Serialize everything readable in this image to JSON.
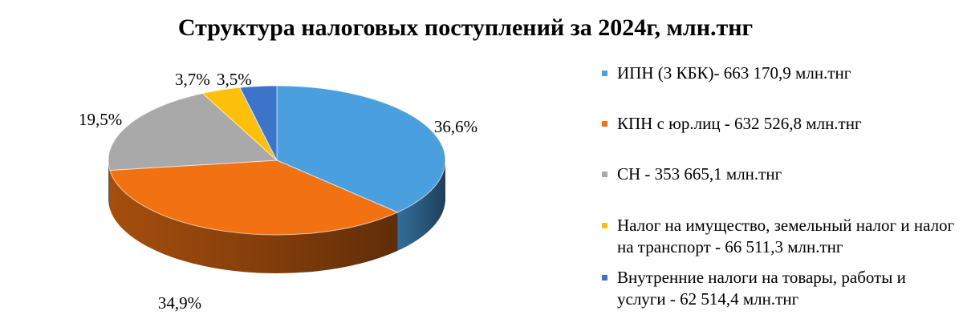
{
  "chart_data": {
    "type": "pie",
    "title": "Структура налоговых поступлений за 2024г, млн.тнг",
    "slices": [
      {
        "label": "ИПН (3 КБК)- 663 170,9 млн.тнг",
        "value": 663170.9,
        "percent_label": "36,6%",
        "color": "#4a9fdf"
      },
      {
        "label": "КПН с юр.лиц - 632 526,8 млн.тнг",
        "value": 632526.8,
        "percent_label": "34,9%",
        "color": "#f27213"
      },
      {
        "label": "СН - 353 665,1 млн.тнг",
        "value": 353665.1,
        "percent_label": "19,5%",
        "color": "#a9a9a9"
      },
      {
        "label": "Налог на имущество, земельный налог и налог на транспорт - 66 511,3 млн.тнг",
        "value": 66511.3,
        "percent_label": "3,7%",
        "color": "#fcbf0a"
      },
      {
        "label": "Внутренние налоги на товары, работы и услуги - 62 514,4 млн.тнг",
        "value": 62514.4,
        "percent_label": "3,5%",
        "color": "#3c74c9"
      }
    ],
    "legend_position": "right",
    "style": "3d"
  }
}
